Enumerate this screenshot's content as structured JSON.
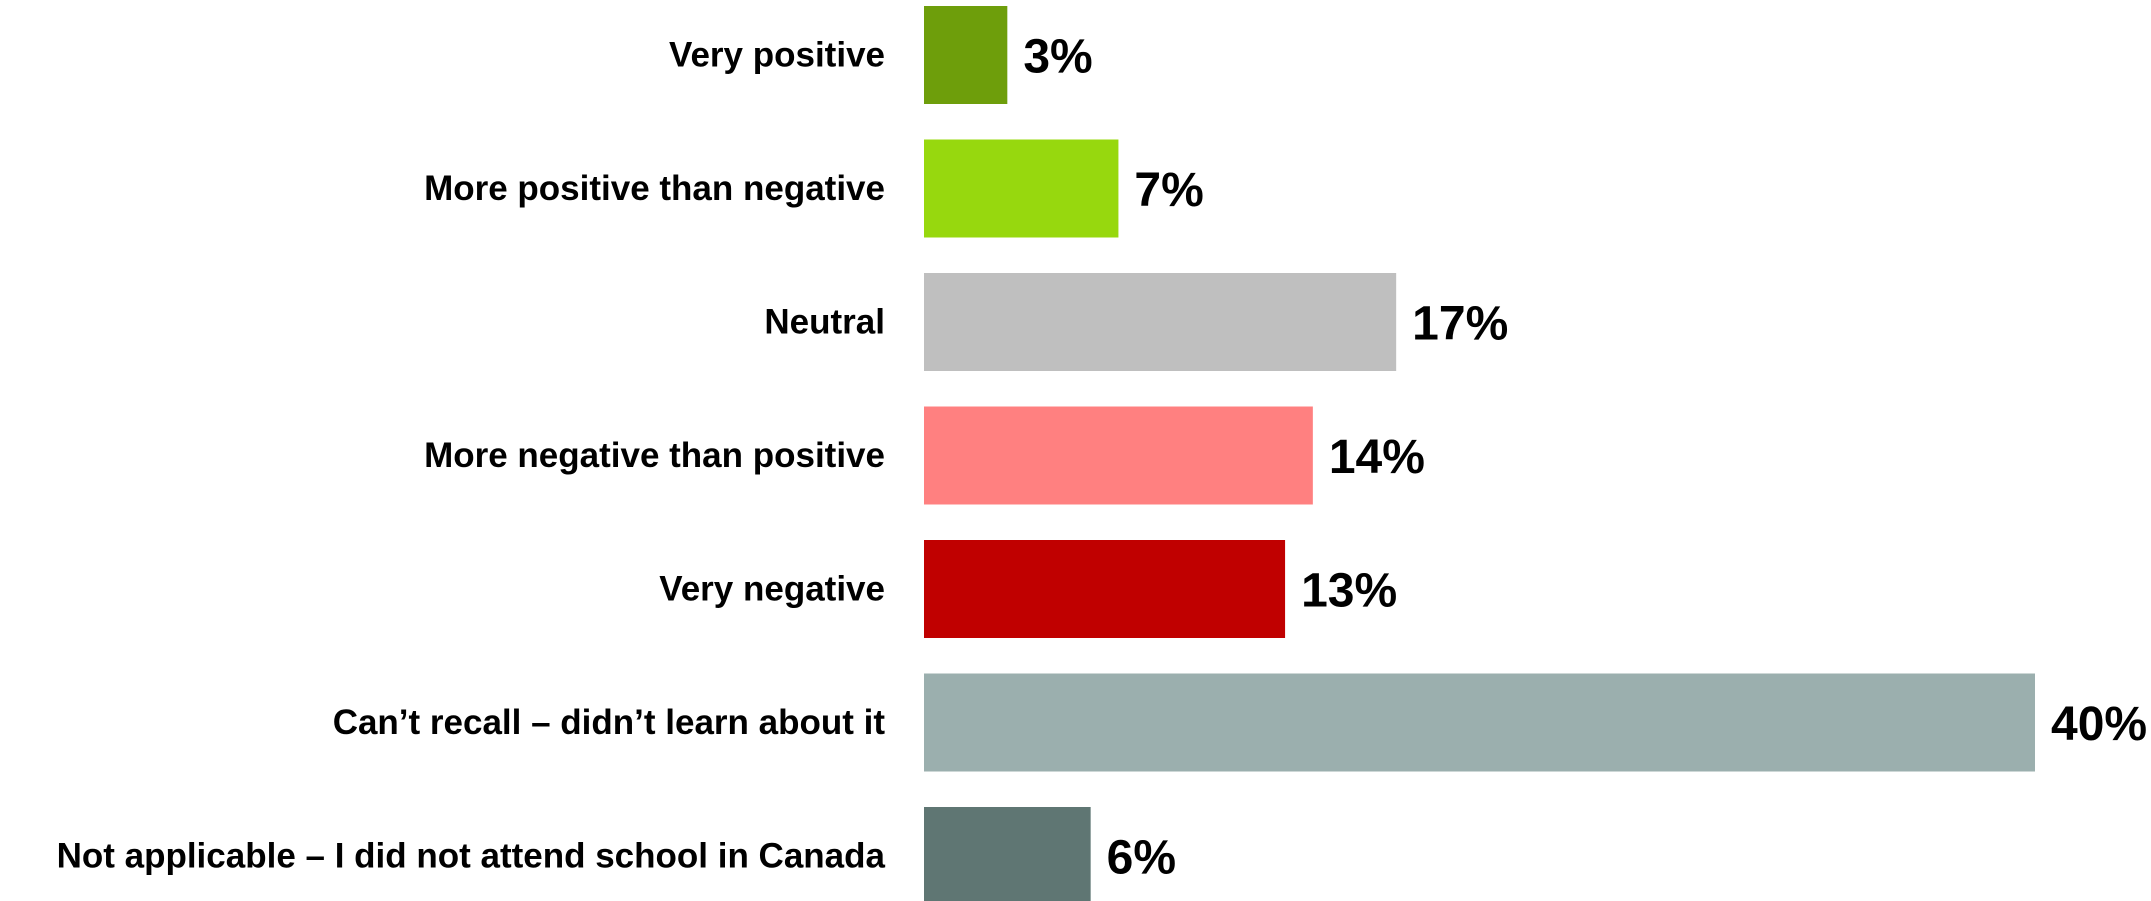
{
  "chart_data": {
    "type": "bar",
    "orientation": "horizontal",
    "categories": [
      "Very positive",
      "More positive than negative",
      "Neutral",
      "More negative than positive",
      "Very negative",
      "Can’t recall – didn’t learn about it",
      "Not applicable – I did not attend school in Canada"
    ],
    "values": [
      3,
      7,
      17,
      14,
      13,
      40,
      6
    ],
    "value_labels": [
      "3%",
      "7%",
      "17%",
      "14%",
      "13%",
      "40%",
      "6%"
    ],
    "colors": [
      "#6E9E0B",
      "#97D80E",
      "#BFBFBF",
      "#FF8080",
      "#C00000",
      "#9BAFAE",
      "#5F7673"
    ],
    "unit": "%",
    "title": "",
    "xlabel": "",
    "ylabel": "",
    "xlim": [
      0,
      40
    ],
    "grid": false,
    "legend": "none"
  }
}
